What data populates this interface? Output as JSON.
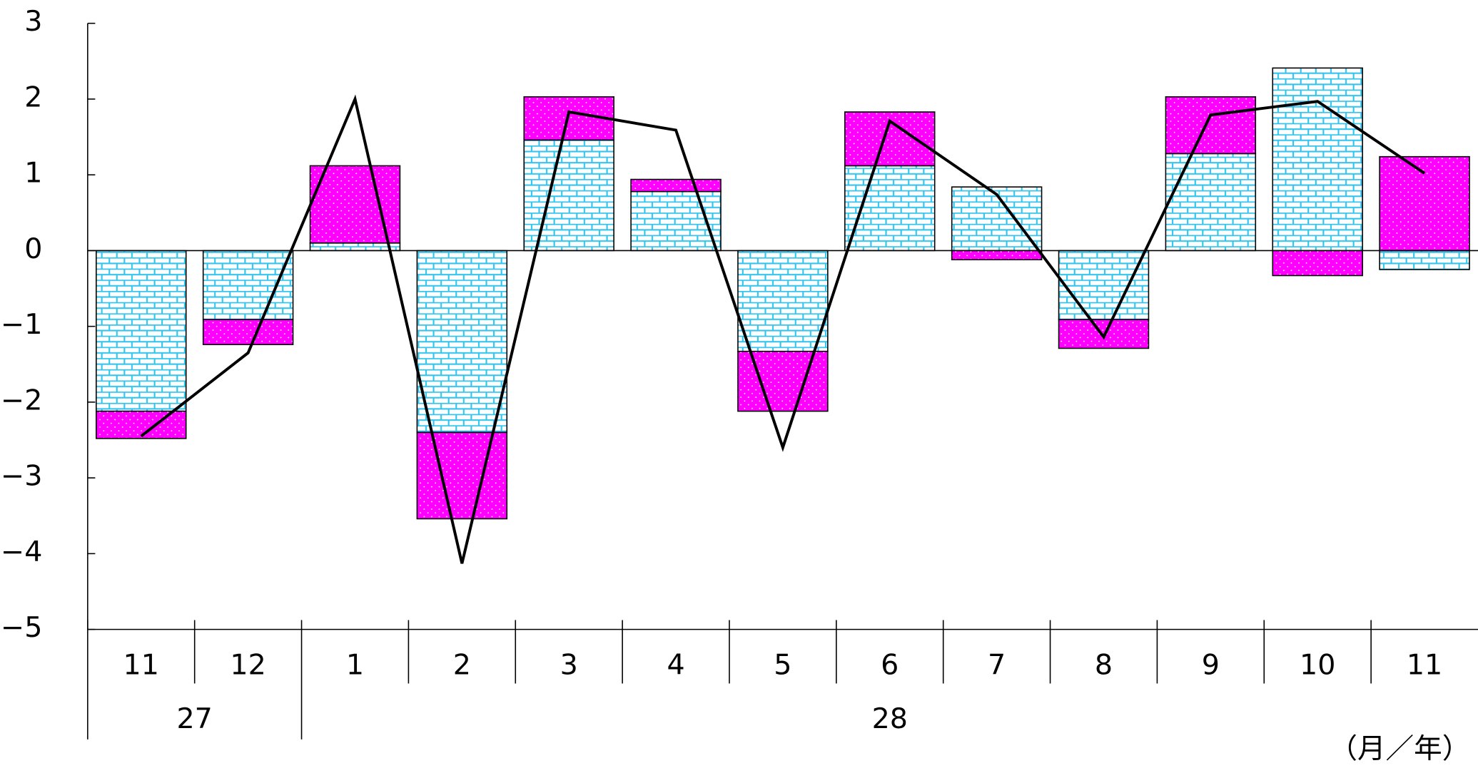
{
  "chart_data": {
    "type": "bar",
    "stacked": true,
    "groups": [
      {
        "label": "27",
        "categories": [
          "11",
          "12"
        ]
      },
      {
        "label": "28",
        "categories": [
          "1",
          "2",
          "3",
          "4",
          "5",
          "6",
          "7",
          "8",
          "9",
          "10",
          "11"
        ]
      }
    ],
    "x_unit_label": "（月／年）",
    "series": [
      {
        "type": "bar",
        "pattern": "brick",
        "color": "#33c4ee",
        "values": [
          -2.12,
          -0.91,
          0.1,
          -2.4,
          1.46,
          0.78,
          -1.33,
          1.12,
          0.84,
          -0.91,
          1.28,
          2.41,
          -0.25
        ]
      },
      {
        "type": "bar",
        "pattern": "dots",
        "color": "#ff00ff",
        "values": [
          -0.36,
          -0.33,
          1.02,
          -1.14,
          0.57,
          0.16,
          -0.79,
          0.71,
          -0.12,
          -0.38,
          0.75,
          -0.33,
          1.24
        ]
      },
      {
        "type": "line",
        "color": "#000000",
        "values": [
          -2.45,
          -1.35,
          2.0,
          -4.13,
          1.83,
          1.59,
          -2.6,
          1.71,
          0.74,
          -1.14,
          1.79,
          1.97,
          1.02
        ]
      }
    ],
    "ylim": [
      -5,
      3
    ],
    "yticks": [
      {
        "value": -5,
        "label": "−5"
      },
      {
        "value": -4,
        "label": "−4"
      },
      {
        "value": -3,
        "label": "−3"
      },
      {
        "value": -2,
        "label": "−2"
      },
      {
        "value": -1,
        "label": "−1"
      },
      0,
      1,
      2,
      3
    ]
  }
}
